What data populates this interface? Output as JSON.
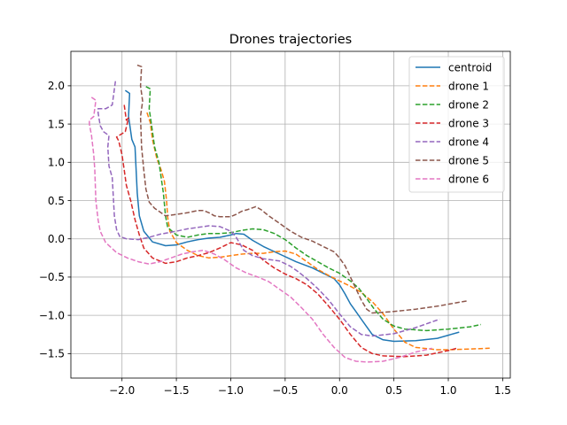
{
  "chart_data": {
    "type": "line",
    "title": "Drones trajectories",
    "xlabel": "",
    "ylabel": "",
    "xlim": [
      -2.47,
      1.57
    ],
    "ylim": [
      -1.82,
      2.45
    ],
    "xticks": [
      -2.0,
      -1.5,
      -1.0,
      -0.5,
      0.0,
      0.5,
      1.0,
      1.5
    ],
    "xtick_labels": [
      "−2.0",
      "−1.5",
      "−1.0",
      "−0.5",
      "0.0",
      "0.5",
      "1.0",
      "1.5"
    ],
    "yticks": [
      -1.5,
      -1.0,
      -0.5,
      0.0,
      0.5,
      1.0,
      1.5,
      2.0
    ],
    "ytick_labels": [
      "−1.5",
      "−1.0",
      "−0.5",
      "0.0",
      "0.5",
      "1.0",
      "1.5",
      "2.0"
    ],
    "grid": true,
    "legend_position": "top-right",
    "series": [
      {
        "name": "centroid",
        "color": "#1f77b4",
        "style": "solid",
        "points": [
          [
            -1.97,
            1.94
          ],
          [
            -1.93,
            1.9
          ],
          [
            -1.94,
            1.6
          ],
          [
            -1.91,
            1.3
          ],
          [
            -1.88,
            1.2
          ],
          [
            -1.86,
            0.6
          ],
          [
            -1.84,
            0.3
          ],
          [
            -1.8,
            0.1
          ],
          [
            -1.72,
            -0.04
          ],
          [
            -1.6,
            -0.09
          ],
          [
            -1.5,
            -0.08
          ],
          [
            -1.4,
            -0.04
          ],
          [
            -1.3,
            -0.01
          ],
          [
            -1.2,
            0.01
          ],
          [
            -1.1,
            0.02
          ],
          [
            -1.0,
            0.05
          ],
          [
            -0.95,
            0.07
          ],
          [
            -0.88,
            0.06
          ],
          [
            -0.8,
            -0.02
          ],
          [
            -0.7,
            -0.1
          ],
          [
            -0.55,
            -0.2
          ],
          [
            -0.4,
            -0.3
          ],
          [
            -0.25,
            -0.38
          ],
          [
            -0.15,
            -0.45
          ],
          [
            -0.05,
            -0.52
          ],
          [
            0.0,
            -0.6
          ],
          [
            0.05,
            -0.72
          ],
          [
            0.1,
            -0.85
          ],
          [
            0.15,
            -0.95
          ],
          [
            0.2,
            -1.05
          ],
          [
            0.25,
            -1.15
          ],
          [
            0.3,
            -1.25
          ],
          [
            0.4,
            -1.32
          ],
          [
            0.5,
            -1.34
          ],
          [
            0.7,
            -1.33
          ],
          [
            0.9,
            -1.3
          ],
          [
            1.0,
            -1.26
          ],
          [
            1.1,
            -1.22
          ]
        ]
      },
      {
        "name": "drone 1",
        "color": "#ff7f0e",
        "style": "dashed",
        "points": [
          [
            -1.77,
            1.65
          ],
          [
            -1.74,
            1.52
          ],
          [
            -1.72,
            1.3
          ],
          [
            -1.68,
            1.05
          ],
          [
            -1.64,
            0.9
          ],
          [
            -1.61,
            0.75
          ],
          [
            -1.59,
            0.5
          ],
          [
            -1.58,
            0.28
          ],
          [
            -1.56,
            0.1
          ],
          [
            -1.5,
            -0.05
          ],
          [
            -1.4,
            -0.15
          ],
          [
            -1.3,
            -0.22
          ],
          [
            -1.2,
            -0.25
          ],
          [
            -1.1,
            -0.24
          ],
          [
            -1.0,
            -0.22
          ],
          [
            -0.9,
            -0.2
          ],
          [
            -0.8,
            -0.19
          ],
          [
            -0.7,
            -0.19
          ],
          [
            -0.6,
            -0.17
          ],
          [
            -0.5,
            -0.16
          ],
          [
            -0.4,
            -0.2
          ],
          [
            -0.3,
            -0.3
          ],
          [
            -0.2,
            -0.4
          ],
          [
            -0.1,
            -0.48
          ],
          [
            0.0,
            -0.55
          ],
          [
            0.1,
            -0.62
          ],
          [
            0.2,
            -0.7
          ],
          [
            0.3,
            -0.82
          ],
          [
            0.4,
            -0.98
          ],
          [
            0.5,
            -1.18
          ],
          [
            0.6,
            -1.35
          ],
          [
            0.7,
            -1.42
          ],
          [
            0.9,
            -1.45
          ],
          [
            1.0,
            -1.45
          ],
          [
            1.2,
            -1.44
          ],
          [
            1.38,
            -1.43
          ]
        ]
      },
      {
        "name": "drone 2",
        "color": "#2ca02c",
        "style": "dashed",
        "points": [
          [
            -1.78,
            1.99
          ],
          [
            -1.74,
            1.96
          ],
          [
            -1.75,
            1.7
          ],
          [
            -1.73,
            1.5
          ],
          [
            -1.7,
            1.2
          ],
          [
            -1.66,
            1.0
          ],
          [
            -1.64,
            0.8
          ],
          [
            -1.62,
            0.6
          ],
          [
            -1.6,
            0.3
          ],
          [
            -1.58,
            0.15
          ],
          [
            -1.5,
            0.05
          ],
          [
            -1.4,
            0.02
          ],
          [
            -1.3,
            0.05
          ],
          [
            -1.2,
            0.07
          ],
          [
            -1.1,
            0.07
          ],
          [
            -1.0,
            0.08
          ],
          [
            -0.9,
            0.11
          ],
          [
            -0.8,
            0.13
          ],
          [
            -0.7,
            0.12
          ],
          [
            -0.6,
            0.07
          ],
          [
            -0.5,
            -0.01
          ],
          [
            -0.4,
            -0.12
          ],
          [
            -0.3,
            -0.22
          ],
          [
            -0.2,
            -0.3
          ],
          [
            -0.1,
            -0.38
          ],
          [
            0.0,
            -0.45
          ],
          [
            0.1,
            -0.55
          ],
          [
            0.18,
            -0.65
          ],
          [
            0.25,
            -0.78
          ],
          [
            0.32,
            -0.92
          ],
          [
            0.4,
            -1.05
          ],
          [
            0.5,
            -1.14
          ],
          [
            0.6,
            -1.18
          ],
          [
            0.8,
            -1.2
          ],
          [
            1.0,
            -1.18
          ],
          [
            1.2,
            -1.15
          ],
          [
            1.3,
            -1.12
          ]
        ]
      },
      {
        "name": "drone 3",
        "color": "#d62728",
        "style": "dashed",
        "points": [
          [
            -1.98,
            1.75
          ],
          [
            -1.96,
            1.55
          ],
          [
            -1.94,
            1.58
          ],
          [
            -1.97,
            1.4
          ],
          [
            -2.05,
            1.33
          ],
          [
            -2.03,
            1.28
          ],
          [
            -2.0,
            1.1
          ],
          [
            -1.98,
            0.9
          ],
          [
            -1.96,
            0.7
          ],
          [
            -1.92,
            0.5
          ],
          [
            -1.88,
            0.25
          ],
          [
            -1.84,
            0.05
          ],
          [
            -1.8,
            -0.12
          ],
          [
            -1.72,
            -0.25
          ],
          [
            -1.6,
            -0.32
          ],
          [
            -1.5,
            -0.3
          ],
          [
            -1.4,
            -0.25
          ],
          [
            -1.3,
            -0.22
          ],
          [
            -1.2,
            -0.18
          ],
          [
            -1.1,
            -0.12
          ],
          [
            -1.0,
            -0.05
          ],
          [
            -0.9,
            -0.08
          ],
          [
            -0.8,
            -0.15
          ],
          [
            -0.7,
            -0.28
          ],
          [
            -0.6,
            -0.38
          ],
          [
            -0.5,
            -0.46
          ],
          [
            -0.4,
            -0.52
          ],
          [
            -0.3,
            -0.6
          ],
          [
            -0.2,
            -0.72
          ],
          [
            -0.1,
            -0.88
          ],
          [
            0.0,
            -1.05
          ],
          [
            0.1,
            -1.25
          ],
          [
            0.2,
            -1.42
          ],
          [
            0.3,
            -1.5
          ],
          [
            0.4,
            -1.53
          ],
          [
            0.6,
            -1.54
          ],
          [
            0.8,
            -1.52
          ],
          [
            1.0,
            -1.46
          ],
          [
            1.08,
            -1.43
          ]
        ]
      },
      {
        "name": "drone 4",
        "color": "#9467bd",
        "style": "dashed",
        "points": [
          [
            -2.06,
            2.06
          ],
          [
            -2.09,
            1.75
          ],
          [
            -2.15,
            1.7
          ],
          [
            -2.22,
            1.7
          ],
          [
            -2.22,
            1.65
          ],
          [
            -2.2,
            1.48
          ],
          [
            -2.17,
            1.4
          ],
          [
            -2.12,
            1.35
          ],
          [
            -2.13,
            1.2
          ],
          [
            -2.12,
            0.95
          ],
          [
            -2.09,
            0.8
          ],
          [
            -2.08,
            0.55
          ],
          [
            -2.07,
            0.3
          ],
          [
            -2.05,
            0.12
          ],
          [
            -2.02,
            0.03
          ],
          [
            -1.96,
            0.0
          ],
          [
            -1.85,
            -0.01
          ],
          [
            -1.75,
            0.02
          ],
          [
            -1.65,
            0.06
          ],
          [
            -1.5,
            0.1
          ],
          [
            -1.4,
            0.13
          ],
          [
            -1.3,
            0.15
          ],
          [
            -1.2,
            0.17
          ],
          [
            -1.1,
            0.16
          ],
          [
            -1.0,
            0.1
          ],
          [
            -0.95,
            0.02
          ],
          [
            -0.88,
            -0.15
          ],
          [
            -0.8,
            -0.22
          ],
          [
            -0.7,
            -0.26
          ],
          [
            -0.55,
            -0.29
          ],
          [
            -0.45,
            -0.36
          ],
          [
            -0.38,
            -0.43
          ],
          [
            -0.3,
            -0.52
          ],
          [
            -0.2,
            -0.65
          ],
          [
            -0.1,
            -0.8
          ],
          [
            0.0,
            -0.98
          ],
          [
            0.1,
            -1.15
          ],
          [
            0.2,
            -1.25
          ],
          [
            0.3,
            -1.27
          ],
          [
            0.5,
            -1.24
          ],
          [
            0.7,
            -1.16
          ],
          [
            0.92,
            -1.05
          ]
        ]
      },
      {
        "name": "drone 5",
        "color": "#8c564b",
        "style": "dashed",
        "points": [
          [
            -1.86,
            2.27
          ],
          [
            -1.82,
            2.25
          ],
          [
            -1.83,
            2.0
          ],
          [
            -1.81,
            1.8
          ],
          [
            -1.83,
            1.6
          ],
          [
            -1.82,
            1.2
          ],
          [
            -1.8,
            0.9
          ],
          [
            -1.78,
            0.65
          ],
          [
            -1.75,
            0.48
          ],
          [
            -1.7,
            0.4
          ],
          [
            -1.65,
            0.35
          ],
          [
            -1.6,
            0.3
          ],
          [
            -1.5,
            0.32
          ],
          [
            -1.4,
            0.34
          ],
          [
            -1.3,
            0.37
          ],
          [
            -1.25,
            0.37
          ],
          [
            -1.2,
            0.34
          ],
          [
            -1.15,
            0.3
          ],
          [
            -1.1,
            0.29
          ],
          [
            -1.0,
            0.29
          ],
          [
            -0.95,
            0.32
          ],
          [
            -0.9,
            0.36
          ],
          [
            -0.85,
            0.38
          ],
          [
            -0.77,
            0.42
          ],
          [
            -0.72,
            0.38
          ],
          [
            -0.65,
            0.3
          ],
          [
            -0.55,
            0.2
          ],
          [
            -0.45,
            0.1
          ],
          [
            -0.35,
            0.02
          ],
          [
            -0.25,
            -0.03
          ],
          [
            -0.15,
            -0.1
          ],
          [
            -0.05,
            -0.17
          ],
          [
            0.0,
            -0.25
          ],
          [
            0.05,
            -0.35
          ],
          [
            0.1,
            -0.5
          ],
          [
            0.15,
            -0.65
          ],
          [
            0.2,
            -0.8
          ],
          [
            0.25,
            -0.92
          ],
          [
            0.3,
            -0.97
          ],
          [
            0.5,
            -0.95
          ],
          [
            0.7,
            -0.92
          ],
          [
            0.9,
            -0.88
          ],
          [
            1.1,
            -0.83
          ],
          [
            1.18,
            -0.81
          ]
        ]
      },
      {
        "name": "drone 6",
        "color": "#e377c2",
        "style": "dashed",
        "points": [
          [
            -2.28,
            1.85
          ],
          [
            -2.24,
            1.81
          ],
          [
            -2.26,
            1.6
          ],
          [
            -2.3,
            1.55
          ],
          [
            -2.3,
            1.5
          ],
          [
            -2.28,
            1.35
          ],
          [
            -2.26,
            1.1
          ],
          [
            -2.25,
            0.9
          ],
          [
            -2.24,
            0.5
          ],
          [
            -2.22,
            0.25
          ],
          [
            -2.2,
            0.1
          ],
          [
            -2.15,
            -0.05
          ],
          [
            -2.05,
            -0.18
          ],
          [
            -1.95,
            -0.25
          ],
          [
            -1.85,
            -0.3
          ],
          [
            -1.75,
            -0.33
          ],
          [
            -1.65,
            -0.3
          ],
          [
            -1.55,
            -0.25
          ],
          [
            -1.45,
            -0.2
          ],
          [
            -1.35,
            -0.17
          ],
          [
            -1.25,
            -0.15
          ],
          [
            -1.15,
            -0.2
          ],
          [
            -1.05,
            -0.28
          ],
          [
            -0.95,
            -0.38
          ],
          [
            -0.85,
            -0.45
          ],
          [
            -0.75,
            -0.5
          ],
          [
            -0.65,
            -0.56
          ],
          [
            -0.55,
            -0.66
          ],
          [
            -0.45,
            -0.76
          ],
          [
            -0.35,
            -0.9
          ],
          [
            -0.25,
            -1.05
          ],
          [
            -0.15,
            -1.25
          ],
          [
            -0.05,
            -1.42
          ],
          [
            0.05,
            -1.55
          ],
          [
            0.15,
            -1.6
          ],
          [
            0.25,
            -1.61
          ],
          [
            0.4,
            -1.6
          ],
          [
            0.55,
            -1.55
          ],
          [
            0.7,
            -1.48
          ],
          [
            0.85,
            -1.43
          ]
        ]
      }
    ]
  }
}
